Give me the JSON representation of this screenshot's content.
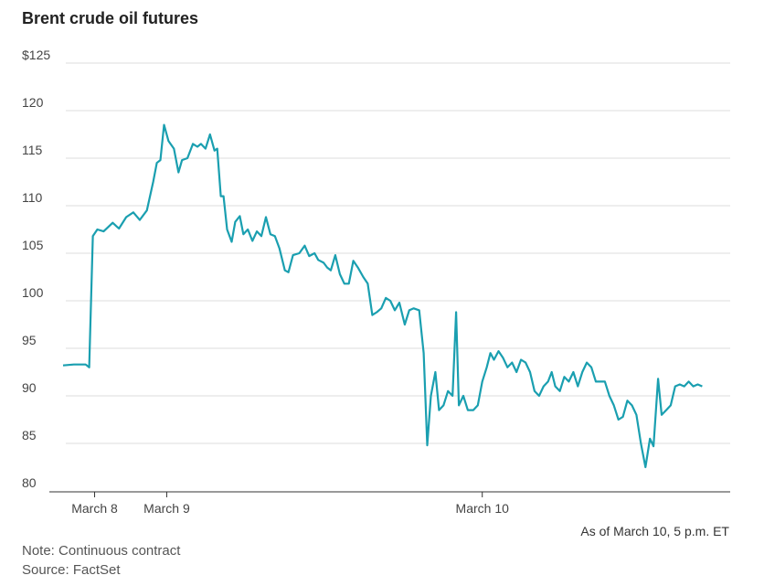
{
  "colors": {
    "line": "#1a9fb0",
    "grid": "#dddddd",
    "axis": "#333333",
    "text": "#444444"
  },
  "chart_data": {
    "type": "line",
    "title": "Brent crude oil futures",
    "xlabel": "",
    "ylabel": "",
    "ylim": [
      80,
      125
    ],
    "y_ticks": [
      {
        "value": 125,
        "label": "$125"
      },
      {
        "value": 120,
        "label": "120"
      },
      {
        "value": 115,
        "label": "115"
      },
      {
        "value": 110,
        "label": "110"
      },
      {
        "value": 105,
        "label": "105"
      },
      {
        "value": 100,
        "label": "100"
      },
      {
        "value": 95,
        "label": "95"
      },
      {
        "value": 90,
        "label": "90"
      },
      {
        "value": 85,
        "label": "85"
      },
      {
        "value": 80,
        "label": "80"
      }
    ],
    "x_ticks": [
      {
        "t": 3.5,
        "label": "March 8"
      },
      {
        "t": 11.5,
        "label": "March 9"
      },
      {
        "t": 46.5,
        "label": "March 10"
      }
    ],
    "x_range": [
      0,
      74
    ],
    "grid": true,
    "series": [
      {
        "name": "",
        "points": [
          [
            0,
            93.2
          ],
          [
            1.2,
            93.3
          ],
          [
            2.5,
            93.3
          ],
          [
            2.9,
            93.0
          ],
          [
            3.3,
            106.8
          ],
          [
            3.8,
            107.5
          ],
          [
            4.5,
            107.3
          ],
          [
            5.5,
            108.2
          ],
          [
            6.2,
            107.6
          ],
          [
            7.0,
            108.8
          ],
          [
            7.8,
            109.3
          ],
          [
            8.5,
            108.5
          ],
          [
            9.3,
            109.5
          ],
          [
            10.0,
            112.5
          ],
          [
            10.4,
            114.5
          ],
          [
            10.8,
            114.8
          ],
          [
            11.2,
            118.5
          ],
          [
            11.7,
            116.8
          ],
          [
            12.3,
            116.0
          ],
          [
            12.8,
            113.5
          ],
          [
            13.2,
            114.8
          ],
          [
            13.8,
            115.0
          ],
          [
            14.4,
            116.5
          ],
          [
            14.9,
            116.2
          ],
          [
            15.3,
            116.5
          ],
          [
            15.8,
            116.0
          ],
          [
            16.3,
            117.5
          ],
          [
            16.8,
            115.8
          ],
          [
            17.1,
            116.0
          ],
          [
            17.5,
            111.0
          ],
          [
            17.8,
            111.0
          ],
          [
            18.2,
            107.5
          ],
          [
            18.7,
            106.2
          ],
          [
            19.1,
            108.3
          ],
          [
            19.6,
            108.9
          ],
          [
            20.0,
            107.0
          ],
          [
            20.5,
            107.5
          ],
          [
            21.0,
            106.3
          ],
          [
            21.5,
            107.3
          ],
          [
            22.0,
            106.8
          ],
          [
            22.5,
            108.8
          ],
          [
            23.0,
            107.0
          ],
          [
            23.5,
            106.8
          ],
          [
            24.0,
            105.5
          ],
          [
            24.6,
            103.2
          ],
          [
            25.0,
            103.0
          ],
          [
            25.5,
            104.8
          ],
          [
            26.2,
            105.0
          ],
          [
            26.8,
            105.8
          ],
          [
            27.3,
            104.7
          ],
          [
            27.9,
            105.0
          ],
          [
            28.3,
            104.3
          ],
          [
            28.9,
            104.0
          ],
          [
            29.3,
            103.5
          ],
          [
            29.7,
            103.2
          ],
          [
            30.2,
            104.8
          ],
          [
            30.7,
            102.8
          ],
          [
            31.2,
            101.8
          ],
          [
            31.7,
            101.8
          ],
          [
            32.2,
            104.2
          ],
          [
            32.7,
            103.5
          ],
          [
            33.3,
            102.5
          ],
          [
            33.8,
            101.8
          ],
          [
            34.3,
            98.5
          ],
          [
            34.8,
            98.8
          ],
          [
            35.3,
            99.2
          ],
          [
            35.8,
            100.3
          ],
          [
            36.3,
            100.0
          ],
          [
            36.8,
            99.0
          ],
          [
            37.3,
            99.8
          ],
          [
            37.9,
            97.5
          ],
          [
            38.4,
            99.0
          ],
          [
            38.9,
            99.2
          ],
          [
            39.5,
            99.0
          ],
          [
            40.0,
            94.5
          ],
          [
            40.4,
            84.8
          ],
          [
            40.8,
            90.0
          ],
          [
            41.3,
            92.5
          ],
          [
            41.7,
            88.5
          ],
          [
            42.2,
            89.0
          ],
          [
            42.7,
            90.5
          ],
          [
            43.2,
            90.0
          ],
          [
            43.6,
            98.8
          ],
          [
            43.9,
            89.0
          ],
          [
            44.4,
            90.0
          ],
          [
            44.9,
            88.5
          ],
          [
            45.5,
            88.5
          ],
          [
            46.0,
            89.0
          ],
          [
            46.5,
            91.5
          ],
          [
            47.0,
            93.0
          ],
          [
            47.4,
            94.5
          ],
          [
            47.8,
            93.8
          ],
          [
            48.3,
            94.7
          ],
          [
            48.8,
            94.0
          ],
          [
            49.3,
            93.0
          ],
          [
            49.8,
            93.5
          ],
          [
            50.3,
            92.5
          ],
          [
            50.8,
            93.8
          ],
          [
            51.3,
            93.5
          ],
          [
            51.8,
            92.5
          ],
          [
            52.3,
            90.5
          ],
          [
            52.8,
            90.0
          ],
          [
            53.3,
            91.0
          ],
          [
            53.8,
            91.5
          ],
          [
            54.2,
            92.5
          ],
          [
            54.6,
            91.0
          ],
          [
            55.1,
            90.5
          ],
          [
            55.6,
            92.0
          ],
          [
            56.1,
            91.5
          ],
          [
            56.6,
            92.5
          ],
          [
            57.1,
            91.0
          ],
          [
            57.6,
            92.5
          ],
          [
            58.1,
            93.5
          ],
          [
            58.6,
            93.0
          ],
          [
            59.1,
            91.5
          ],
          [
            59.6,
            91.5
          ],
          [
            60.1,
            91.5
          ],
          [
            60.6,
            90.0
          ],
          [
            61.1,
            89.0
          ],
          [
            61.6,
            87.5
          ],
          [
            62.1,
            87.8
          ],
          [
            62.6,
            89.5
          ],
          [
            63.1,
            89.0
          ],
          [
            63.6,
            88.0
          ],
          [
            64.1,
            85.0
          ],
          [
            64.6,
            82.5
          ],
          [
            65.1,
            85.5
          ],
          [
            65.5,
            84.7
          ],
          [
            66.0,
            91.8
          ],
          [
            66.4,
            88.0
          ],
          [
            66.9,
            88.5
          ],
          [
            67.4,
            89.0
          ],
          [
            67.9,
            91.0
          ],
          [
            68.4,
            91.2
          ],
          [
            68.9,
            91.0
          ],
          [
            69.4,
            91.5
          ],
          [
            69.9,
            91.0
          ],
          [
            70.4,
            91.2
          ],
          [
            70.9,
            91.0
          ]
        ]
      }
    ],
    "annotations": [
      "As of March 10, 5 p.m. ET"
    ]
  },
  "footer": {
    "as_of": "As of March 10, 5 p.m. ET",
    "note": "Note: Continuous contract",
    "source": "Source: FactSet"
  }
}
